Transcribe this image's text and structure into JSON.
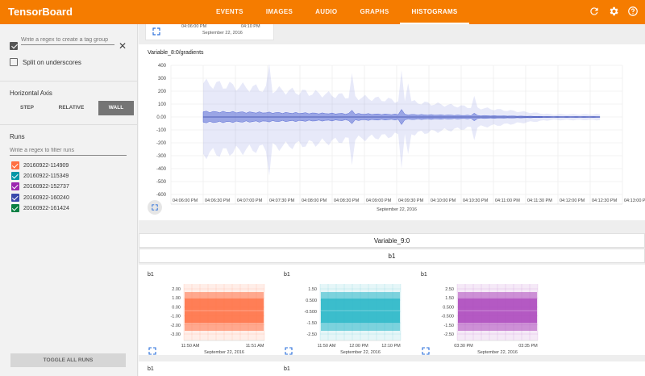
{
  "app": {
    "title": "TensorBoard"
  },
  "tabs": [
    {
      "label": "EVENTS",
      "active": false
    },
    {
      "label": "IMAGES",
      "active": false
    },
    {
      "label": "AUDIO",
      "active": false
    },
    {
      "label": "GRAPHS",
      "active": false
    },
    {
      "label": "HISTOGRAMS",
      "active": true
    }
  ],
  "top_icons": [
    "refresh-icon",
    "gear-icon",
    "help-icon"
  ],
  "sidebar": {
    "tag_group_placeholder": "Write a regex to create a tag group",
    "split_label": "Split on underscores",
    "horizontal_axis_title": "Horizontal Axis",
    "axis_buttons": [
      "STEP",
      "RELATIVE",
      "WALL"
    ],
    "axis_selected": "WALL",
    "runs_title": "Runs",
    "runs_filter_placeholder": "Write a regex to filter runs",
    "runs": [
      {
        "name": "20160922-114909",
        "color": "#ff7043"
      },
      {
        "name": "20160922-115349",
        "color": "#0097a7"
      },
      {
        "name": "20160922-152737",
        "color": "#9c27b0"
      },
      {
        "name": "20160922-160240",
        "color": "#3949ab"
      },
      {
        "name": "20160922-161424",
        "color": "#0b8043"
      }
    ],
    "toggle_label": "TOGGLE ALL RUNS"
  },
  "top_card": {
    "tick_a": "04:06:00 PM",
    "tick_b": "04:10 PM",
    "date": "September 22, 2016"
  },
  "main_chart": {
    "title": "Variable_8:0/gradients",
    "color": "#5b6ed6",
    "y_ticks": [
      "400",
      "300",
      "200",
      "100",
      "0.00",
      "-100",
      "-200",
      "-300",
      "-400",
      "-500",
      "-600"
    ],
    "x_ticks": [
      "04:06:00 PM",
      "04:06:30 PM",
      "04:07:00 PM",
      "04:07:30 PM",
      "04:08:00 PM",
      "04:08:30 PM",
      "04:09:00 PM",
      "04:09:30 PM",
      "04:10:00 PM",
      "04:10:30 PM",
      "04:11:00 PM",
      "04:11:30 PM",
      "04:12:00 PM",
      "04:12:30 PM",
      "04:13:00 PM"
    ],
    "date": "September 22, 2016"
  },
  "section_header": "Variable_9:0",
  "tag_header": "b1",
  "small_charts": [
    {
      "title": "b1",
      "color": "#ff7043",
      "y_ticks": [
        "2.00",
        "1.00",
        "0.00",
        "-1.00",
        "-2.00",
        "-3.00"
      ],
      "x_ticks": [
        "11:50 AM",
        "11:51 AM"
      ],
      "date": "September 22, 2016"
    },
    {
      "title": "b1",
      "color": "#26b5c6",
      "y_ticks": [
        "1.50",
        "0.500",
        "-0.500",
        "-1.50",
        "-2.50"
      ],
      "x_ticks": [
        "11:50 AM",
        "12:00 PM",
        "12:10 PM"
      ],
      "date": "September 22, 2016"
    },
    {
      "title": "b1",
      "color": "#ab47bc",
      "y_ticks": [
        "2.50",
        "1.50",
        "0.500",
        "-0.500",
        "-1.50",
        "-2.50"
      ],
      "x_ticks": [
        "03:30 PM",
        "03:35 PM"
      ],
      "date": "September 22, 2016"
    }
  ],
  "bottom_titles": [
    "b1",
    "b1"
  ]
}
